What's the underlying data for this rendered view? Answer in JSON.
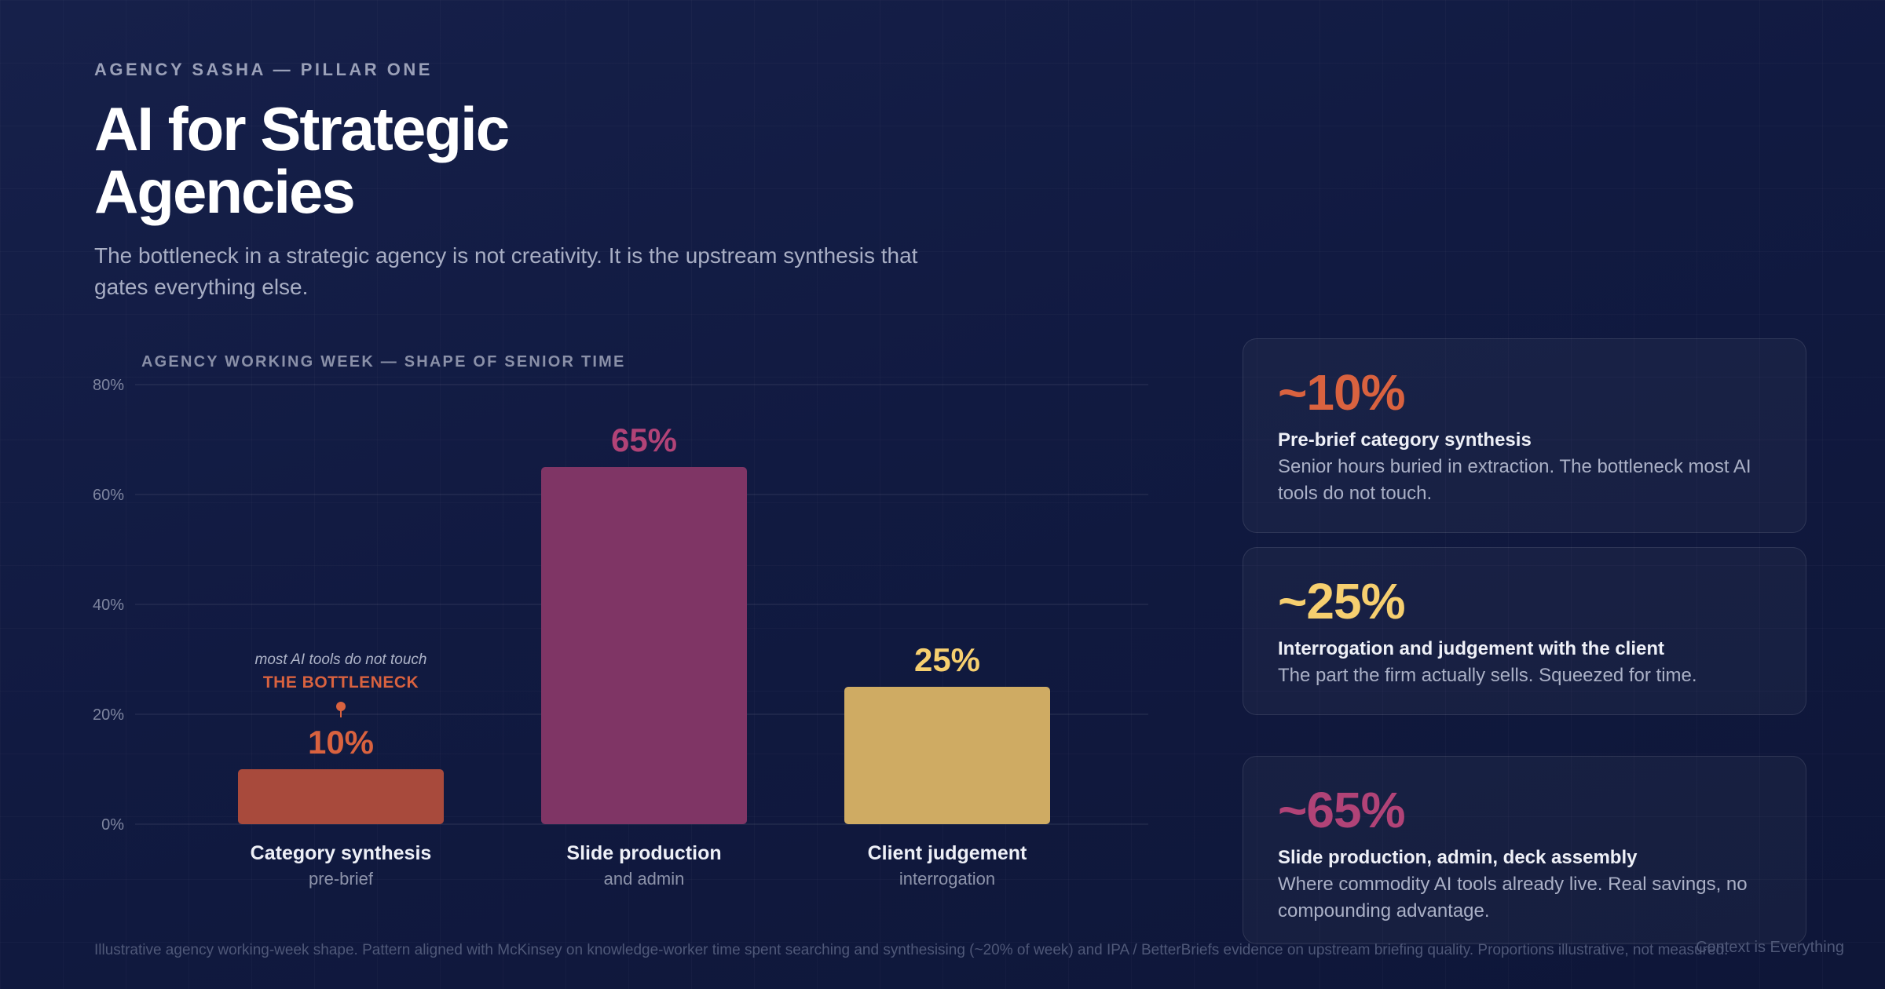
{
  "header": {
    "eyebrow": "AGENCY SASHA — PILLAR ONE",
    "title": "AI for Strategic Agencies",
    "subtitle": "The bottleneck in a strategic agency is not creativity. It is the upstream synthesis that gates everything else."
  },
  "chart_data": {
    "type": "bar",
    "title": "AGENCY WORKING WEEK — SHAPE OF SENIOR TIME",
    "categories": [
      "Category synthesis",
      "Slide production",
      "Client judgement"
    ],
    "sublabels": [
      "pre-brief",
      "and admin",
      "interrogation"
    ],
    "values": [
      10,
      65,
      25
    ],
    "value_labels": [
      "10%",
      "65%",
      "25%"
    ],
    "colors": [
      "#a84a3c",
      "#7f3565",
      "#cfab63"
    ],
    "label_colors": [
      "#d9623f",
      "#b14377",
      "#f6cf6f"
    ],
    "ylim": [
      0,
      80
    ],
    "yticks": [
      0,
      20,
      40,
      60,
      80
    ],
    "ytick_labels": [
      "0%",
      "20%",
      "40%",
      "60%",
      "80%"
    ],
    "grid": true,
    "annotation": {
      "category": "Category synthesis",
      "note": "most AI tools do not touch",
      "label": "THE BOTTLENECK",
      "color": "#d9623f"
    }
  },
  "cards": [
    {
      "stat": "~10%",
      "color": "#d9623f",
      "heading": "Pre-brief category synthesis",
      "body": "Senior hours buried in extraction. The bottleneck most AI tools do not touch."
    },
    {
      "stat": "~25%",
      "color": "#f6cf6f",
      "heading": "Interrogation and judgement with the client",
      "body": "The part the firm actually sells. Squeezed for time."
    },
    {
      "stat": "~65%",
      "color": "#b14377",
      "heading": "Slide production, admin, deck assembly",
      "body": "Where commodity AI tools already live. Real savings, no compounding advantage."
    }
  ],
  "footer": {
    "footnote": "Illustrative agency working-week shape. Pattern aligned with McKinsey on knowledge-worker time spent searching and synthesising (~20% of week) and IPA / BetterBriefs evidence on upstream briefing quality. Proportions illustrative, not measured.",
    "signoff": "Context is Everything"
  }
}
